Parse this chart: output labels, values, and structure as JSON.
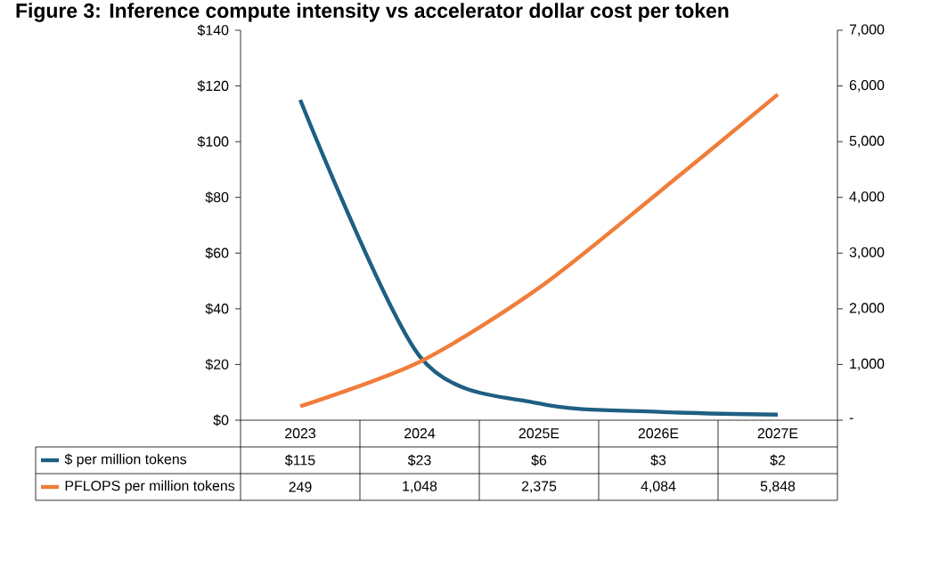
{
  "chart_data": {
    "type": "line",
    "title": "Figure 3: Inference compute intensity vs accelerator dollar cost per token",
    "categories": [
      "2023",
      "2024",
      "2025E",
      "2026E",
      "2027E"
    ],
    "series": [
      {
        "name": "$ per million tokens",
        "color": "#1f5f82",
        "values": [
          115,
          23,
          6,
          3,
          2
        ],
        "value_labels": [
          "$115",
          "$23",
          "$6",
          "$3",
          "$2"
        ]
      },
      {
        "name": "PFLOPS per million tokens",
        "color": "#f07d3a",
        "axis": "y2",
        "values": [
          249,
          1048,
          2375,
          4084,
          5848
        ],
        "value_labels": [
          "249",
          "1,048",
          "2,375",
          "4,084",
          "5,848"
        ]
      }
    ],
    "ylim": [
      0,
      140
    ],
    "yticks": [
      {
        "value": 0,
        "label": "$0"
      },
      {
        "value": 20,
        "label": "$20"
      },
      {
        "value": 40,
        "label": "$40"
      },
      {
        "value": 60,
        "label": "$60"
      },
      {
        "value": 80,
        "label": "$80"
      },
      {
        "value": 100,
        "label": "$100"
      },
      {
        "value": 120,
        "label": "$120"
      },
      {
        "value": 140,
        "label": "$140"
      }
    ],
    "y2lim": [
      0,
      7000
    ],
    "y2ticks": [
      {
        "value": 0,
        "label": "-"
      },
      {
        "value": 1000,
        "label": "1,000"
      },
      {
        "value": 2000,
        "label": "2,000"
      },
      {
        "value": 3000,
        "label": "3,000"
      },
      {
        "value": 4000,
        "label": "4,000"
      },
      {
        "value": 5000,
        "label": "5,000"
      },
      {
        "value": 6000,
        "label": "6,000"
      },
      {
        "value": 7000,
        "label": "7,000"
      }
    ],
    "legend": "bottom",
    "grid": false,
    "marker": "none",
    "line_style": "solid"
  }
}
